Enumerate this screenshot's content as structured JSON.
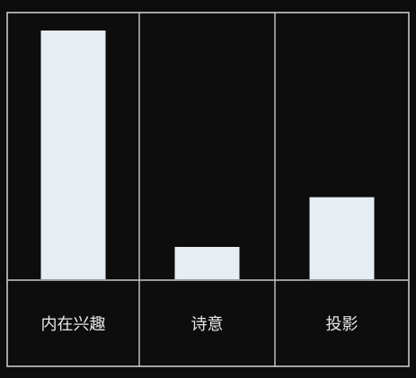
{
  "chart_data": {
    "type": "bar",
    "title": "",
    "xlabel": "",
    "ylabel": "",
    "categories": [
      "内在兴趣",
      "诗意",
      "投影"
    ],
    "values": [
      100,
      13,
      33
    ],
    "ylim": [
      0,
      100
    ],
    "grid": false,
    "legend": "none",
    "colors": {
      "background": "#0d0d0d",
      "bar": "#e6edf3",
      "frame": "#c9c9c9",
      "text": "#e8e8e8"
    }
  }
}
